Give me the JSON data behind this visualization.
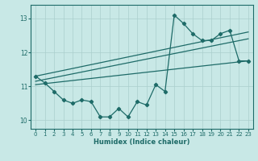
{
  "xlabel": "Humidex (Indice chaleur)",
  "ylabel": "",
  "background_color": "#c8e8e6",
  "grid_color": "#aacfcd",
  "line_color": "#1e6b68",
  "x_data": [
    0,
    1,
    2,
    3,
    4,
    5,
    6,
    7,
    8,
    9,
    10,
    11,
    12,
    13,
    14,
    15,
    16,
    17,
    18,
    19,
    20,
    21,
    22,
    23
  ],
  "y_main": [
    11.3,
    11.1,
    10.85,
    10.6,
    10.5,
    10.6,
    10.55,
    10.1,
    10.1,
    10.35,
    10.1,
    10.55,
    10.45,
    11.05,
    10.85,
    13.1,
    12.85,
    12.55,
    12.35,
    12.35,
    12.55,
    12.65,
    11.75,
    11.75
  ],
  "trend1_x": [
    0,
    23
  ],
  "trend1_y": [
    11.05,
    11.75
  ],
  "trend2_x": [
    0,
    23
  ],
  "trend2_y": [
    11.15,
    12.4
  ],
  "trend3_x": [
    0,
    23
  ],
  "trend3_y": [
    11.3,
    12.6
  ],
  "xlim": [
    -0.5,
    23.5
  ],
  "ylim": [
    9.75,
    13.4
  ],
  "yticks": [
    10,
    11,
    12,
    13
  ],
  "xticks": [
    0,
    1,
    2,
    3,
    4,
    5,
    6,
    7,
    8,
    9,
    10,
    11,
    12,
    13,
    14,
    15,
    16,
    17,
    18,
    19,
    20,
    21,
    22,
    23
  ]
}
